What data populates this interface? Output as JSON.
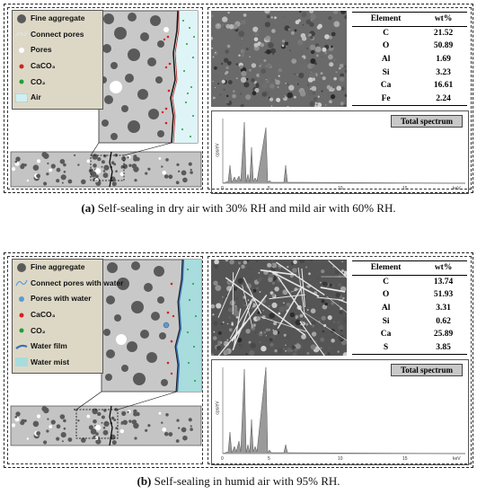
{
  "figure": {
    "panels": [
      {
        "id": "a",
        "legend": [
          {
            "icon": "fine-aggregate-icon",
            "label": "Fine aggregate"
          },
          {
            "icon": "connect-pores-icon",
            "label": "Connect pores"
          },
          {
            "icon": "pores-icon",
            "label": "Pores"
          },
          {
            "icon": "caco3-dot-icon",
            "label": "CaCO₃"
          },
          {
            "icon": "co2-dot-icon",
            "label": "CO₂"
          },
          {
            "icon": "air-swatch-icon",
            "label": "Air"
          }
        ],
        "table": {
          "headers": [
            "Element",
            "wt%"
          ],
          "rows": [
            [
              "C",
              "21.52"
            ],
            [
              "O",
              "50.89"
            ],
            [
              "Al",
              "1.69"
            ],
            [
              "Si",
              "3.23"
            ],
            [
              "Ca",
              "16.61"
            ],
            [
              "Fe",
              "2.24"
            ]
          ]
        },
        "spectrum_title": "Total spectrum",
        "caption_label": "(a)",
        "caption_text": " Self-sealing in dry air with 30% RH and mild air with 60% RH."
      },
      {
        "id": "b",
        "legend": [
          {
            "icon": "fine-aggregate-icon",
            "label": "Fine aggregate"
          },
          {
            "icon": "connect-pores-water-icon",
            "label": "Connect pores with water"
          },
          {
            "icon": "pores-water-icon",
            "label": "Pores with water"
          },
          {
            "icon": "caco3-dot-icon",
            "label": "CaCO₃"
          },
          {
            "icon": "co2-dot-icon",
            "label": "CO₂"
          },
          {
            "icon": "water-film-icon",
            "label": "Water film"
          },
          {
            "icon": "water-mist-swatch-icon",
            "label": "Water mist"
          }
        ],
        "table": {
          "headers": [
            "Element",
            "wt%"
          ],
          "rows": [
            [
              "C",
              "13.74"
            ],
            [
              "O",
              "51.93"
            ],
            [
              "Al",
              "3.31"
            ],
            [
              "Si",
              "0.62"
            ],
            [
              "Ca",
              "25.89"
            ],
            [
              "S",
              "3.85"
            ]
          ]
        },
        "spectrum_title": "Total spectrum",
        "caption_label": "(b)",
        "caption_text": " Self-sealing in humid air with 95% RH."
      }
    ],
    "spectrum_axis": {
      "ylabel": "cps/eV",
      "xunit": "keV"
    },
    "colors": {
      "aggregate": "#5a5a5a",
      "concrete": "#c4c4c4",
      "caco3": "#d42020",
      "co2": "#1f9e3a",
      "air": "#cfeff3",
      "mist": "#a8dcdd",
      "pore_water": "#5b9bd5",
      "legend_bg": "#ddd8c6"
    }
  }
}
